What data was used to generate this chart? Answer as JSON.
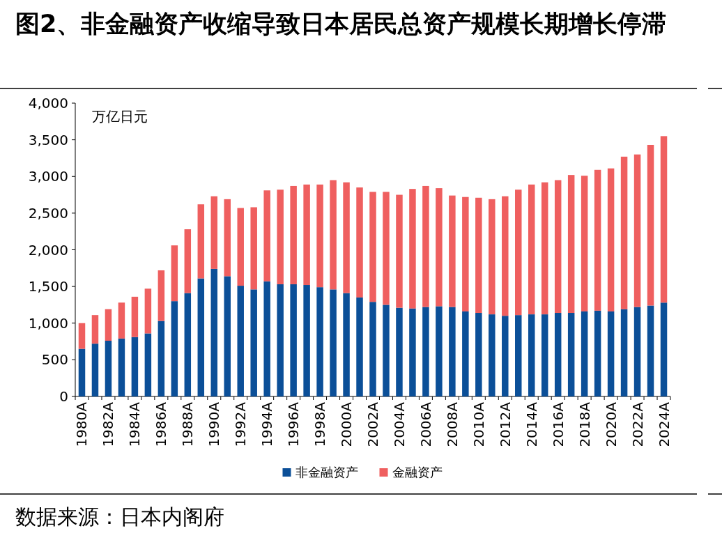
{
  "chart_data": {
    "type": "bar",
    "title": "图2、非金融资产收缩导致日本居民总资产规模长期增长停滞",
    "ylabel": "万亿日元",
    "annotations": [
      "数据来源：日本内阁府"
    ],
    "categories": [
      "1980A",
      null,
      "1982A",
      null,
      "1984A",
      null,
      "1986A",
      null,
      "1988A",
      null,
      "1990A",
      null,
      "1992A",
      null,
      "1994A",
      null,
      "1996A",
      null,
      "1998A",
      null,
      "2000A",
      null,
      "2002A",
      null,
      "2004A",
      null,
      "2006A",
      null,
      "2008A",
      null,
      "2010A",
      null,
      "2012A",
      null,
      "2014A",
      null,
      "2016A",
      null,
      "2018A",
      null,
      "2020A",
      null,
      "2022A",
      null,
      "2024A"
    ],
    "stacked": true,
    "series": [
      {
        "name": "非金融资产",
        "color": "#0b4f98",
        "values": [
          650,
          720,
          760,
          790,
          810,
          860,
          1030,
          1300,
          1410,
          1610,
          1740,
          1640,
          1510,
          1460,
          1570,
          1530,
          1530,
          1520,
          1490,
          1460,
          1410,
          1350,
          1290,
          1250,
          1210,
          1200,
          1220,
          1230,
          1220,
          1160,
          1140,
          1120,
          1100,
          1110,
          1120,
          1120,
          1140,
          1140,
          1160,
          1170,
          1160,
          1190,
          1220,
          1240,
          1280
        ]
      },
      {
        "name": "金融资产",
        "color": "#ef5f5f",
        "values": [
          350,
          390,
          430,
          490,
          550,
          610,
          690,
          760,
          870,
          1010,
          990,
          1050,
          1060,
          1120,
          1240,
          1290,
          1340,
          1370,
          1400,
          1490,
          1510,
          1500,
          1500,
          1540,
          1540,
          1630,
          1650,
          1610,
          1520,
          1560,
          1570,
          1570,
          1630,
          1710,
          1770,
          1800,
          1810,
          1880,
          1850,
          1920,
          1950,
          2080,
          2080,
          2190,
          2270
        ]
      }
    ],
    "ylim": [
      0,
      4000
    ],
    "yticks": [
      {
        "value": 0,
        "label": "0"
      },
      {
        "value": 500,
        "label": "500"
      },
      {
        "value": 1000,
        "label": "1,000"
      },
      {
        "value": 1500,
        "label": "1,500"
      },
      {
        "value": 2000,
        "label": "2,000"
      },
      {
        "value": 2500,
        "label": "2,500"
      },
      {
        "value": 3000,
        "label": "3,000"
      },
      {
        "value": 3500,
        "label": "3,500"
      },
      {
        "value": 4000,
        "label": "4,000"
      }
    ],
    "grid": false,
    "legend": "bottom"
  }
}
